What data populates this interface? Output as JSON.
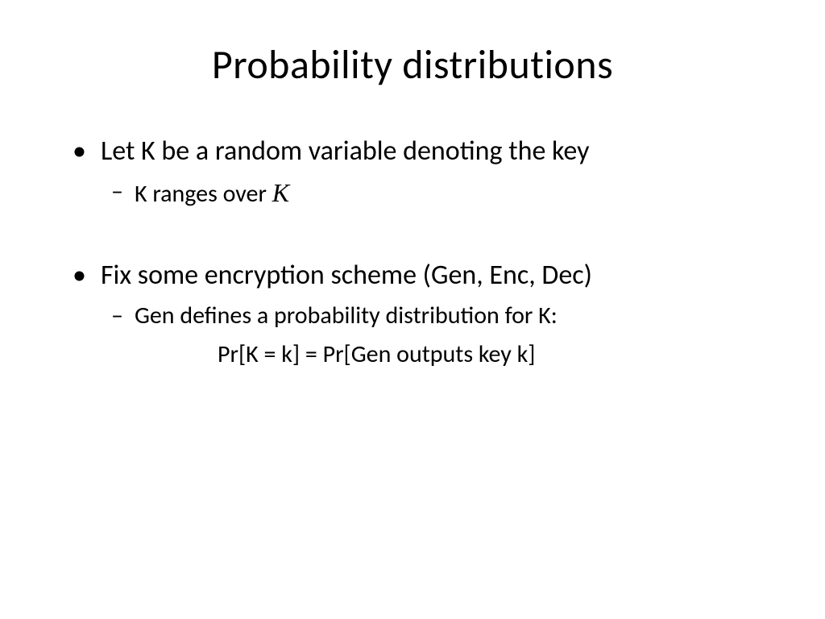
{
  "slide": {
    "title": "Probability distributions",
    "title_fontsize": 50,
    "body_fontsize": 34,
    "sub_fontsize": 30,
    "text_color": "#000000",
    "background_color": "#ffffff",
    "bullets": [
      {
        "text": "Let K be a random variable denoting the key",
        "subs": [
          {
            "prefix": "K ranges over ",
            "script_symbol": "K"
          }
        ]
      },
      {
        "text": "Fix some encryption scheme (Gen, Enc, Dec)",
        "subs": [
          {
            "text": "Gen defines a probability distribution for K:",
            "continuation": "Pr[K = k] = Pr[Gen outputs key k]"
          }
        ]
      }
    ],
    "bullet_marker": "•",
    "sub_marker": "–"
  }
}
